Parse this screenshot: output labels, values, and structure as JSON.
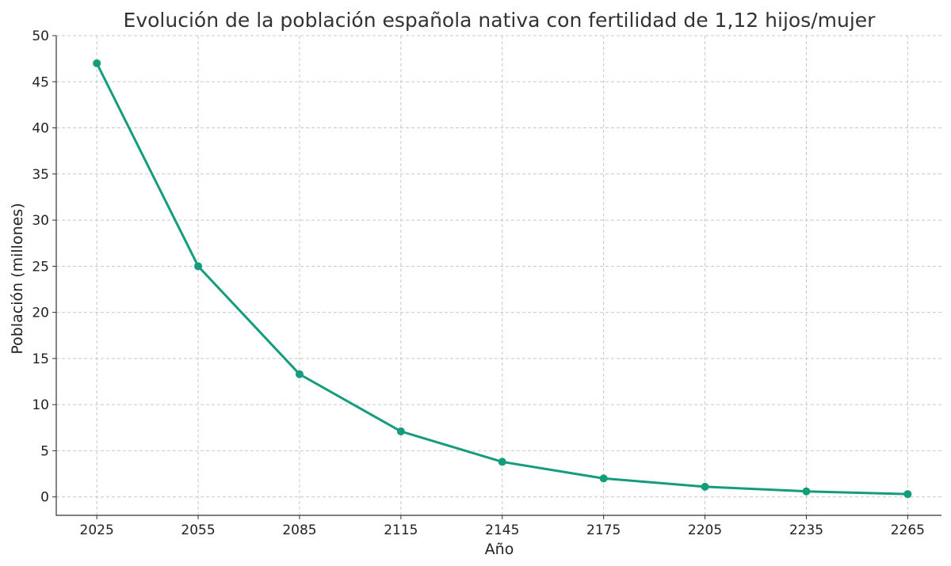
{
  "chart_data": {
    "type": "line",
    "title": "Evolución de la población española nativa con fertilidad de 1,12 hijos/mujer",
    "xlabel": "Año",
    "ylabel": "Población (millones)",
    "x": [
      2025,
      2055,
      2085,
      2115,
      2145,
      2175,
      2205,
      2235,
      2265
    ],
    "series": [
      {
        "values": [
          47.0,
          25.0,
          13.3,
          7.1,
          3.8,
          2.0,
          1.1,
          0.6,
          0.3
        ]
      }
    ],
    "xticks": [
      "2025",
      "2055",
      "2085",
      "2115",
      "2145",
      "2175",
      "2205",
      "2235",
      "2265"
    ],
    "yticks": [
      "0",
      "5",
      "10",
      "15",
      "20",
      "25",
      "30",
      "35",
      "40",
      "45",
      "50"
    ],
    "xlim": [
      2013,
      2275
    ],
    "ylim": [
      -2,
      50
    ],
    "grid": true,
    "line_color": "#159c7c"
  }
}
